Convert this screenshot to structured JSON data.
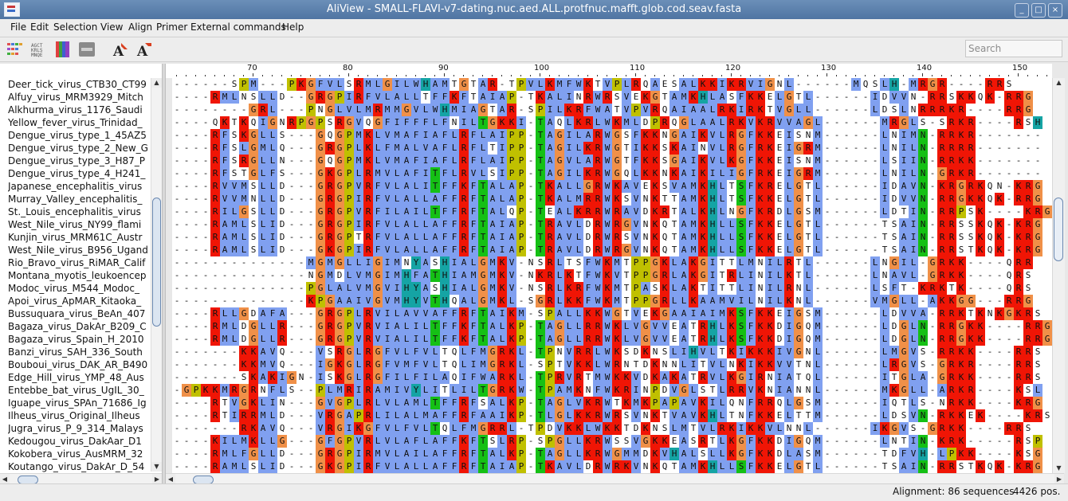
{
  "window": {
    "title": "AliView - SMALL-FLAVI-v7-dating.nuc.aed.ALL.protfnuc.mafft.glob.cod.seav.fasta",
    "min_label": "_",
    "max_label": "□",
    "close_label": "×"
  },
  "menu": [
    "File",
    "Edit",
    "Selection",
    "View",
    "Align",
    "Primer",
    "External commands",
    "Help"
  ],
  "toolbar": {
    "search_placeholder": "Search"
  },
  "ruler": {
    "labels": [
      "70",
      "80",
      "90",
      "100",
      "110",
      "120",
      "130",
      "140",
      "150"
    ]
  },
  "sequence_names": [
    "Deer_tick_virus_CTB30_CT99",
    "Alfuy_virus_MRM3929_Mitch",
    "Alkhurma_virus_1176_Saudi",
    "Yellow_fever_virus_Trinidad_",
    "Dengue_virus_type_1_45AZ5",
    "Dengue_virus_type_2_New_G",
    "Dengue_virus_type_3_H87_P",
    "Dengue_virus_type_4_H241_",
    "Japanese_encephalitis_virus",
    "Murray_Valley_encephalitis_",
    "St._Louis_encephalitis_virus",
    "West_Nile_virus_NY99_flami",
    "Kunjin_virus_MRM61C_Austr",
    "West_Nile_virus_B956_Ugand",
    "Rio_Bravo_virus_RiMAR_Calif",
    "Montana_myotis_leukoencep",
    "Modoc_virus_M544_Modoc_",
    "Apoi_virus_ApMAR_Kitaoka_",
    "Bussuquara_virus_BeAn_407",
    "Bagaza_virus_DakAr_B209_C",
    "Bagaza_virus_Spain_H_2010",
    "Banzi_virus_SAH_336_South",
    "Bouboui_virus_DAK_AR_B490",
    "Edge_Hill_virus_YMP_48_Aus",
    "Entebbe_bat_virus_UgIL_30_",
    "Iguape_virus_SPAn_71686_Ig",
    "Ilheus_virus_Original_Ilheus",
    "Jugra_virus_P_9_314_Malays",
    "Kedougou_virus_DakAar_D1",
    "Kokobera_virus_AusMRM_32",
    "Koutango_virus_DakAr_D_54"
  ],
  "alignment": [
    "------SPM---PKGFVLSRMLGILWHAMTGTAR-TPVLKMFWKTVPLRQAESALKKIKRVIGNL------MQSLH-MRGR----RRS",
    "----RMLNSLLD--GRGPIRFVLALLTFFKFTAIAP-TKALINRWRSVEKGTAMKHLASFKKELGTL------IDVVN-RRSKKQK-RRG",
    "--------GRL---PNGLVLMRMMGVLWHMIAGTAR-SPILKRFWATVPVRQAIAALRKIRKTVGLL------LDSLNRRRKR----RRG",
    "----QKTKQIGNRPGPSRGVQGFIFFFLFNILTGKKI-TAQLKRLWKMLDPRQGLAALRKVKRVVAGL------MRGLS-SRKR----RSH",
    "----RFSKGLLS---GQGPMKLVMAFIAFLRFLAIPP-TAGILARWGSFKKNGAIKVLRGFKKEISNM------LNIMN-RRKR-------",
    "----RFSLGMLQ---GRGPLKLFMALVAFLRFLTIPP-TAGILKRWGTIKKSKAINVLRGFRKEIGRM------LNILN-RRRR-------",
    "----RFSRGLLN---GQGPMKLVMAFIAFLRFLAIPP-TAGVLARWGTFKKSGAIKVLKGFKKEISNM------LSIIN-RRKK-------",
    "----RFSTGLFS---GKGPLRMVLAFITFLRVLSIPP-TAGILKRWGQLKKNKAIKILIGFRKEIGRM------LNILN-GRKR-------",
    "----RVVMSLLD---GRGPVRFVLALITFFKFTALAP-TKALLGRWKAVEKSVAMKHLTSFKRELGTL------IDAVN-KRGRKQN-KRG",
    "----RVVMNLLD---GRGPIRFVLALLAFFRFTALAP-TKALMRRWKSVNKTTAMKHLTSFKKELGTL------IDVVN-RRGKKQK-RRG",
    "----RILGSLLD---GRGPVRFILAILTFFRFTALQP-TEALKRRWRAVDKRTALKHLNGFKRDLGSM------LDTIN-RRPSK----KRG",
    "----RAMLSLID---GRGPIRFVLALLAFFRFTAIAP-TRAVLDRWRGVNKQTAMKHLLSFKKELGTL------TSAIN-RRSSKQK-KRG",
    "----RAMLSLID---GRGPTRFVLALLAFFRFTAIAP-TRAVLDRWRSVNKQTAMKHLLSFKKELGTL------TSAIN-RRSSKQK-KRG",
    "----RAMLSLID---GKGPIRFVLALLAFFRFTAIAP-TRAVLDRWRGVNKQTAMKHLLSFKKELGTL------TSAIN-RRSTKQK-KRG",
    "--------------MGMGLLIGIMNYASHIALGMKV-NSRLTSFWKMTPPGKLAKGITTLMNILRTL------LNGIL-GRKK----QRR",
    "--------------NGMDLVMGIMHFATHIAMGMKV-NKRLKTFWKVTPPGRLAKGITRLINILKTL------LNAVL-GRKK----QRS",
    "--------------PGLALVMGVIHYASHIALGMKV-NSRLKRFWKMTPASKLAKTITTLINILRNL------LSFT-KRKTK----QRS",
    "--------------KPGAAIVGVMHYVTHQALGMKL-SGRLKKFWKMTPPGRLLKAAMVILNILKNL------VMGLL-AKKGG---RRG",
    "----RLLGDAFA---GRGPLRVILAVVAFFRFTAIKM-SPALLKKWGTVEKGAAIAIMKSFKKEIGSM------LDVVA-RRKTKNKGKRS",
    "----RMLDGLLR---GRGPVRVIALILTFFKFTALKP-TAGLLRRWKLVGVVEATRHLKSFKKDIGQM------LDGLN-RRGKK----RRG",
    "----RMLDGLLR---GRGPVRVIALILTFFKFTALKP-TAGLLRRWKLVGVVEATRHLKSFKKDIGQM------LDGLN-RRGKK----RRG",
    "-------KKAVQ---VSRGLRGFVLFVLTQLFMGRKL-TPNVRRLWKSDKNSLIHVLTKIKKKIVGNL------LMGVS-RRKK----RRS",
    "-------KKMVQ---IGKGLRGFVMFVLTQLIMGRKL-SPTVKKLWRNTDKNNLITVLNKIKKVVTNL------LRGVS-GRKR----RRS",
    "-------SKAKIGN-ISKGLRGFILFILAQIFWARKL-TPRVRTMWKKVDKAKATRVLKGIRNIATQL------ITGLA-GRKK----RRS",
    "-GPKKMRGRNFLS--PLMRIRAMIVYLITLILTGRKW-TPAMKNFWKRINPDVGLSTLRRVKNIANNL------MKGLL-ARKR----KSL",
    "----RTVGKLIN---GVGPLRLVLAMLTFFRFSALKP-TAGLVKRWTKMKPAPAVKILQNFRRQLGSM------IQTLS-NRKK----KRG",
    "----RTIRRMLD---VRGAPRLILALMAFFRFAAIKP-TLGLKKRWRSVNKTVAVKHLTNFKKELTTM------LDSVN-RKKEK----KRS",
    "-------RKAVQ---VRGIKGFVLFVLTQLFMGRRL-TPDVKKLWKKTDKNSLMTVLRKIKKVLNNL------IKGVS-GRKK----RRS",
    "----KILMKLLG---GFGPVRLVLAFLAFFKFTSLRP-SPGLLKRWSSVGKKEASRTLKGFKKDIGQM------LNTIN-KRK-----RSP",
    "----RMLFGLLD---GRGPIRMVLAILAFFRFTALKP-TAGLLKRWGMMDKVHALSLLKGFKKDLASM------TDFVH-LPKK----KSG",
    "----RAMLSLID---GKGPIRFVLALLAFFRFTAIAP-TKAVLDRWRKVNKQTAMKHLLSFKKELGTL------TSAIN-RRSTKQK-KRG"
  ],
  "status": {
    "alignment_text": "Alignment: 86 sequences",
    "positions_text": "4426 pos."
  }
}
